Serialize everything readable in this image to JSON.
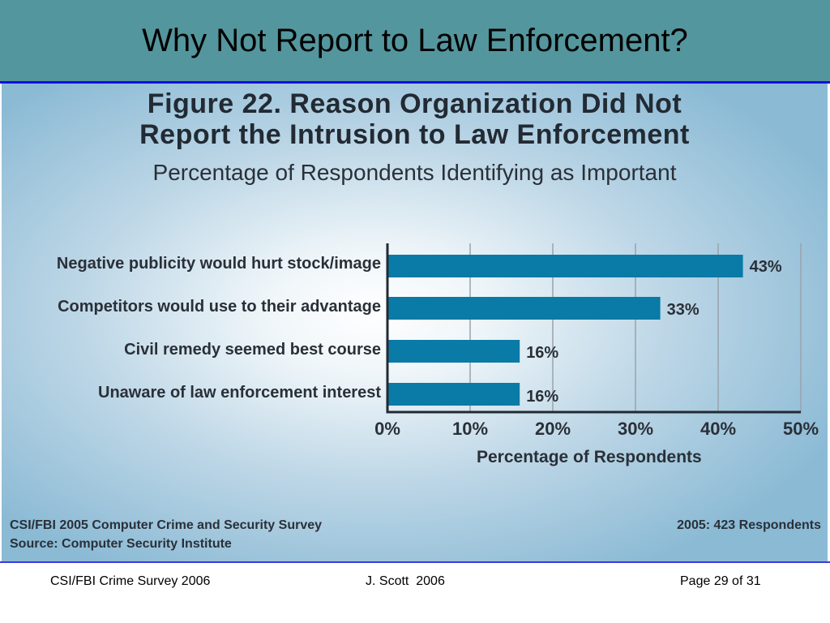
{
  "slide": {
    "title": "Why Not Report to Law Enforcement?",
    "footer_left": "CSI/FBI Crime Survey 2006",
    "footer_center": "J. Scott  2006",
    "footer_right": "Page 29 of 31"
  },
  "figure": {
    "title_line1": "Figure 22. Reason Organization Did Not",
    "title_line2": "Report the Intrusion to Law Enforcement",
    "subtitle": "Percentage of Respondents Identifying as Important",
    "source_line1": "CSI/FBI 2005 Computer Crime and Security Survey",
    "source_line2": "Source: Computer Security Institute",
    "respondents": "2005: 423 Respondents"
  },
  "chart_data": {
    "type": "bar",
    "orientation": "horizontal",
    "categories": [
      "Negative publicity would hurt stock/image",
      "Competitors would use to their advantage",
      "Civil remedy seemed best course",
      "Unaware of law enforcement interest"
    ],
    "values": [
      43,
      33,
      16,
      16
    ],
    "value_labels": [
      "43%",
      "33%",
      "16%",
      "16%"
    ],
    "xlabel": "Percentage of Respondents",
    "xlim": [
      0,
      50
    ],
    "xticks": [
      0,
      10,
      20,
      30,
      40,
      50
    ],
    "xtick_labels": [
      "0%",
      "10%",
      "20%",
      "30%",
      "40%",
      "50%"
    ],
    "grid": true,
    "bar_color": "#0a7aa6"
  }
}
